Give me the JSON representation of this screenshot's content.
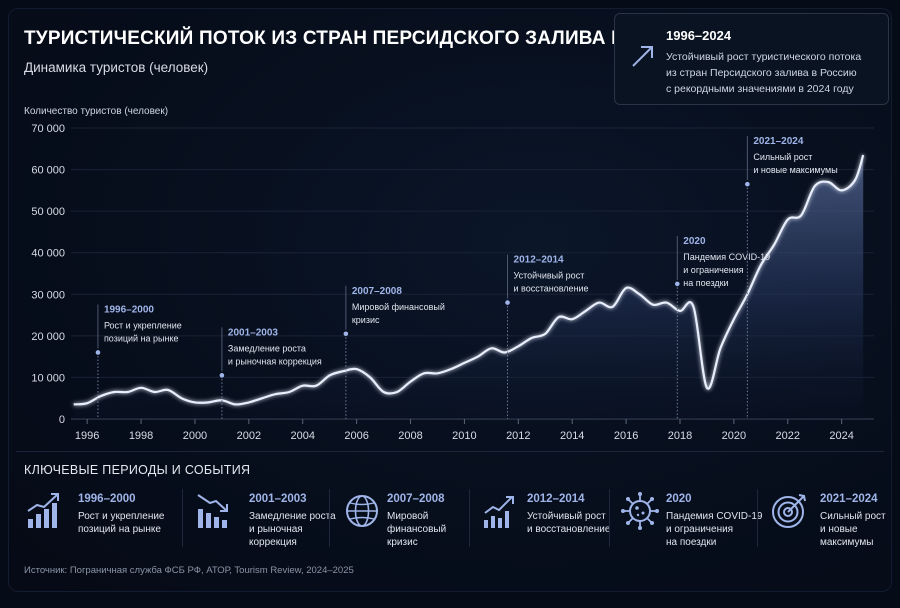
{
  "header": {
    "title": "ТУРИСТИЧЕСКИЙ ПОТОК ИЗ СТРАН ПЕРСИДСКОГО ЗАЛИВА В РОССИЮ",
    "subtitle": "Динамика туристов (человек)"
  },
  "callout": {
    "title": "1996–2024",
    "lines": [
      "Устойчивый рост туристического потока",
      "из стран Персидского залива в Россию",
      "с рекордными значениями в 2024 году"
    ],
    "icon": "trend-arrow-icon"
  },
  "chart_data": {
    "type": "area",
    "title": "ТУРИСТИЧЕСКИЙ ПОТОК ИЗ СТРАН ПЕРСИДСКОГО ЗАЛИВА В РОССИЮ",
    "subtitle": "Динамика туристов (человек)",
    "ylabel": "Количество туристов (человек)",
    "xlabel": "",
    "xlim": [
      1995.4,
      2025.2
    ],
    "ylim": [
      0,
      70000
    ],
    "grid": true,
    "y_ticks": [
      0,
      10000,
      20000,
      30000,
      40000,
      50000,
      60000,
      70000
    ],
    "y_tick_labels": [
      "0",
      "10 000",
      "20 000",
      "30 000",
      "40 000",
      "50 000",
      "60 000",
      "70 000"
    ],
    "x_ticks": [
      1996,
      1998,
      2000,
      2002,
      2004,
      2006,
      2008,
      2010,
      2012,
      2014,
      2016,
      2018,
      2020,
      2022,
      2024
    ],
    "x_tick_labels": [
      "1996",
      "1998",
      "2000",
      "2002",
      "2004",
      "2006",
      "2008",
      "2010",
      "2012",
      "2014",
      "2016",
      "2018",
      "2020",
      "2022",
      "2024"
    ],
    "series": [
      {
        "color": "#e8eefc",
        "x": [
          1995.5,
          1996.0,
          1996.5,
          1997.0,
          1997.5,
          1998.0,
          1998.5,
          1999.0,
          1999.5,
          2000.0,
          2000.5,
          2001.0,
          2001.5,
          2002.0,
          2002.5,
          2003.0,
          2003.5,
          2004.0,
          2004.5,
          2005.0,
          2005.5,
          2006.0,
          2006.5,
          2007.0,
          2007.5,
          2008.0,
          2008.5,
          2009.0,
          2009.5,
          2010.0,
          2010.5,
          2011.0,
          2011.5,
          2012.0,
          2012.5,
          2013.0,
          2013.5,
          2014.0,
          2014.5,
          2015.0,
          2015.5,
          2016.0,
          2016.5,
          2017.0,
          2017.5,
          2018.0,
          2018.5,
          2019.0,
          2019.5,
          2020.0,
          2020.5,
          2021.0,
          2021.5,
          2022.0,
          2022.5,
          2023.0,
          2023.5,
          2024.0,
          2024.5,
          2024.8
        ],
        "y": [
          3500,
          3800,
          5500,
          6500,
          6500,
          7500,
          6500,
          7000,
          5000,
          4000,
          4000,
          4500,
          3500,
          4000,
          5000,
          6000,
          6500,
          8000,
          8000,
          10500,
          11500,
          12000,
          10000,
          6500,
          6500,
          9000,
          11000,
          11000,
          12000,
          13500,
          15000,
          17000,
          16000,
          17500,
          19500,
          20500,
          24500,
          24000,
          26000,
          28000,
          27000,
          31500,
          30000,
          27500,
          28000,
          26000,
          27000,
          7500,
          17000,
          24000,
          30000,
          37000,
          42000,
          48000,
          49000,
          56000,
          57000,
          55000,
          57500,
          63500
        ]
      }
    ],
    "annotations": [
      {
        "x": 1996.4,
        "y": 16000,
        "title": "1996–2000",
        "lines": [
          "Рост и укрепление",
          "позиций на рынке"
        ]
      },
      {
        "x": 2001.0,
        "y": 10500,
        "title": "2001–2003",
        "lines": [
          "Замедление роста",
          "и рыночная коррекция"
        ]
      },
      {
        "x": 2005.6,
        "y": 20500,
        "title": "2007–2008",
        "lines": [
          "Мировой финансовый",
          "кризис"
        ]
      },
      {
        "x": 2011.6,
        "y": 28000,
        "title": "2012–2014",
        "lines": [
          "Устойчивый рост",
          "и восстановление"
        ]
      },
      {
        "x": 2017.9,
        "y": 32500,
        "title": "2020",
        "lines": [
          "Пандемия COVID-19",
          "и ограничения",
          "на поездки"
        ]
      },
      {
        "x": 2020.5,
        "y": 56500,
        "title": "2021–2024",
        "lines": [
          "Сильный рост",
          "и новые максимумы"
        ]
      }
    ]
  },
  "key_periods": {
    "heading": "КЛЮЧЕВЫЕ ПЕРИОДЫ И СОБЫТИЯ",
    "items": [
      {
        "icon": "bar-growth-icon",
        "years": "1996–2000",
        "lines": [
          "Рост и укрепление",
          "позиций на рынке"
        ]
      },
      {
        "icon": "bar-decline-icon",
        "years": "2001–2003",
        "lines": [
          "Замедление роста",
          "и рыночная",
          "коррекция"
        ]
      },
      {
        "icon": "globe-icon",
        "years": "2007–2008",
        "lines": [
          "Мировой",
          "финансовый",
          "кризис"
        ]
      },
      {
        "icon": "bar-recovery-icon",
        "years": "2012–2014",
        "lines": [
          "Устойчивый рост",
          "и восстановление"
        ]
      },
      {
        "icon": "virus-icon",
        "years": "2020",
        "lines": [
          "Пандемия COVID-19",
          "и ограничения",
          "на поездки"
        ]
      },
      {
        "icon": "target-icon",
        "years": "2021–2024",
        "lines": [
          "Сильный рост",
          "и новые",
          "максимумы"
        ]
      }
    ]
  },
  "footer": {
    "source": "Источник: Пограничная служба ФСБ РФ, АТОР, Tourism Review, 2024–2025"
  },
  "colors": {
    "background": "#070e1c",
    "line": "#e8eefc",
    "accent": "#9fb4e8",
    "grid": "#1a2336"
  }
}
